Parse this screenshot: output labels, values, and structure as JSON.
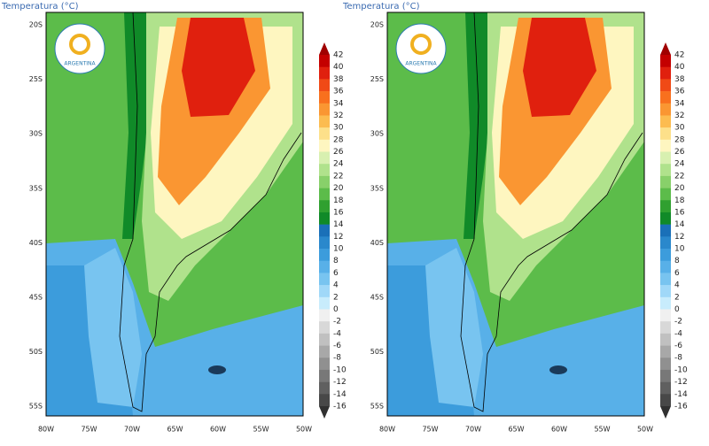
{
  "panels": [
    {
      "title": "Temperatura (°C)",
      "logo_text": "ARGENTINA",
      "lat_labels": [
        "20S",
        "25S",
        "30S",
        "35S",
        "40S",
        "45S",
        "50S",
        "55S"
      ],
      "lon_labels": [
        "80W",
        "75W",
        "70W",
        "65W",
        "60W",
        "55W",
        "50W"
      ],
      "colorbar": {
        "labels": [
          "42",
          "40",
          "38",
          "36",
          "34",
          "32",
          "30",
          "28",
          "26",
          "24",
          "22",
          "20",
          "18",
          "16",
          "14",
          "12",
          "10",
          "8",
          "6",
          "4",
          "2",
          "0",
          "-2",
          "-4",
          "-6",
          "-8",
          "-10",
          "-12",
          "-14",
          "-16"
        ],
        "colors": [
          "#c40000",
          "#e0200e",
          "#f04a16",
          "#f8701e",
          "#fa9632",
          "#fcbc50",
          "#fde08a",
          "#fef6c0",
          "#d8f0b0",
          "#b0e28c",
          "#88d06a",
          "#5cbc4a",
          "#30a030",
          "#108a28",
          "#1a70b8",
          "#2a88cc",
          "#3c9cdc",
          "#58b0e8",
          "#78c4f0",
          "#a0d8f8",
          "#c8ecfc",
          "#f0f0f0",
          "#d8d8d8",
          "#c0c0c0",
          "#a8a8a8",
          "#909090",
          "#787878",
          "#606060",
          "#484848"
        ]
      }
    },
    {
      "title": "Temperatura (°C)",
      "logo_text": "ARGENTINA",
      "lat_labels": [
        "20S",
        "25S",
        "30S",
        "35S",
        "40S",
        "45S",
        "50S",
        "55S"
      ],
      "lon_labels": [
        "80W",
        "75W",
        "70W",
        "65W",
        "60W",
        "55W",
        "50W"
      ],
      "colorbar": {
        "labels": [
          "42",
          "40",
          "38",
          "36",
          "34",
          "32",
          "30",
          "28",
          "26",
          "24",
          "22",
          "20",
          "18",
          "16",
          "14",
          "12",
          "10",
          "8",
          "6",
          "4",
          "2",
          "0",
          "-2",
          "-4",
          "-6",
          "-8",
          "-10",
          "-12",
          "-14",
          "-16"
        ],
        "colors": [
          "#c40000",
          "#e0200e",
          "#f04a16",
          "#f8701e",
          "#fa9632",
          "#fcbc50",
          "#fde08a",
          "#fef6c0",
          "#d8f0b0",
          "#b0e28c",
          "#88d06a",
          "#5cbc4a",
          "#30a030",
          "#108a28",
          "#1a70b8",
          "#2a88cc",
          "#3c9cdc",
          "#58b0e8",
          "#78c4f0",
          "#a0d8f8",
          "#c8ecfc",
          "#f0f0f0",
          "#d8d8d8",
          "#c0c0c0",
          "#a8a8a8",
          "#909090",
          "#787878",
          "#606060",
          "#484848"
        ]
      }
    }
  ]
}
